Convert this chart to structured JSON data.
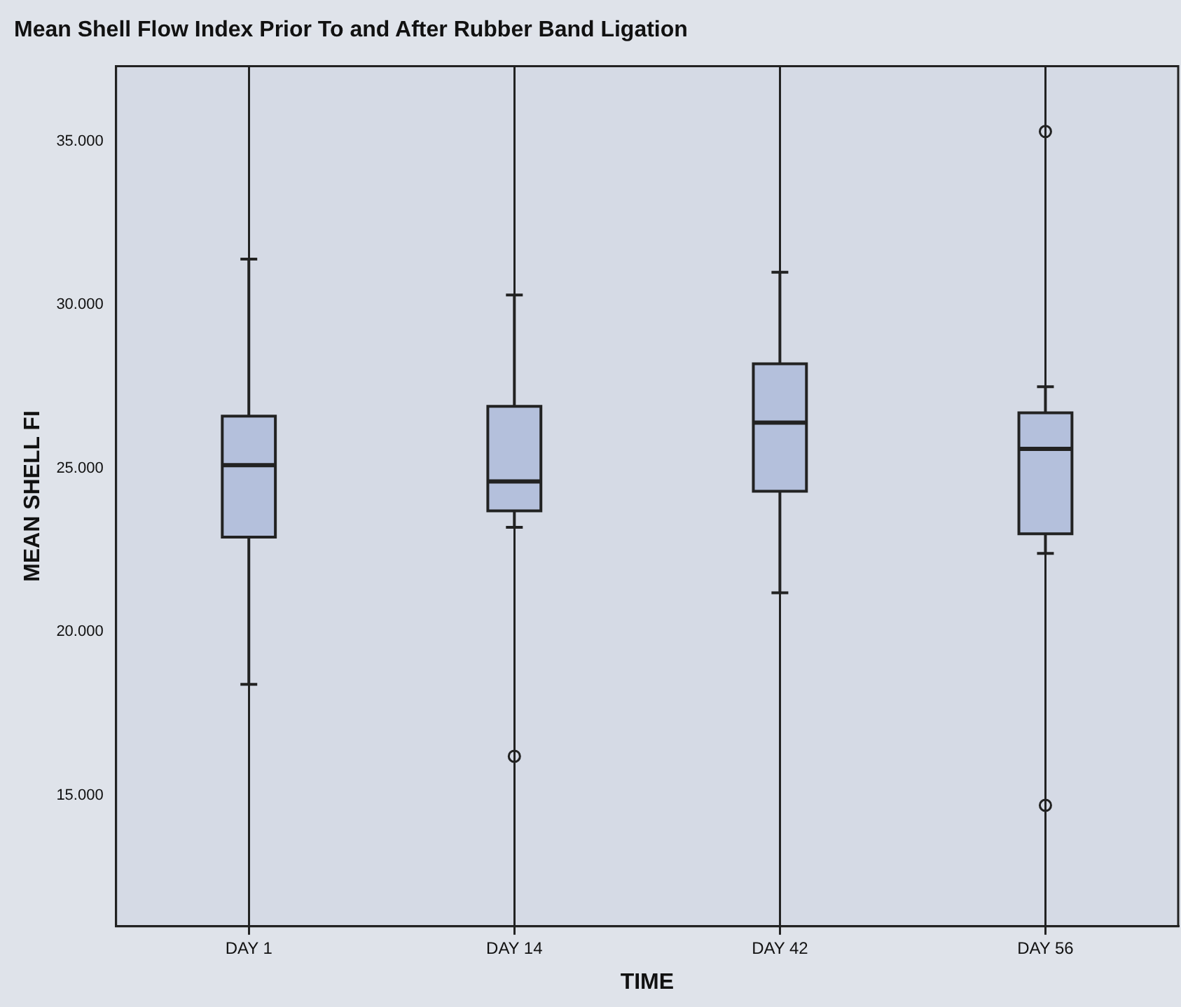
{
  "chart_data": {
    "type": "box",
    "title": "Mean Shell Flow Index Prior To and After Rubber Band Ligation",
    "xlabel": "TIME",
    "ylabel": "MEAN SHELL FI",
    "categories": [
      "DAY 1",
      "DAY 14",
      "DAY 42",
      "DAY 56"
    ],
    "color": "#b4c0dc",
    "boxes": [
      {
        "low": 18.4,
        "q1": 22.9,
        "median": 25.1,
        "q3": 26.6,
        "high": 31.4
      },
      {
        "low": 23.2,
        "q1": 23.7,
        "median": 24.6,
        "q3": 26.9,
        "high": 30.3,
        "outliers": [
          16.2
        ]
      },
      {
        "low": 21.2,
        "q1": 24.3,
        "median": 26.4,
        "q3": 28.2,
        "high": 31.0
      },
      {
        "low": 22.4,
        "q1": 23.0,
        "median": 25.6,
        "q3": 26.7,
        "high": 27.5,
        "outliers": [
          35.3,
          14.7
        ]
      }
    ],
    "ylim": [
      11,
      37.3
    ],
    "yticks": [
      {
        "value": 15,
        "label": "15.000"
      },
      {
        "value": 20,
        "label": "20.000"
      },
      {
        "value": 25,
        "label": "25.000"
      },
      {
        "value": 30,
        "label": "30.000"
      },
      {
        "value": 35,
        "label": "35.000"
      }
    ],
    "grid": "x"
  }
}
